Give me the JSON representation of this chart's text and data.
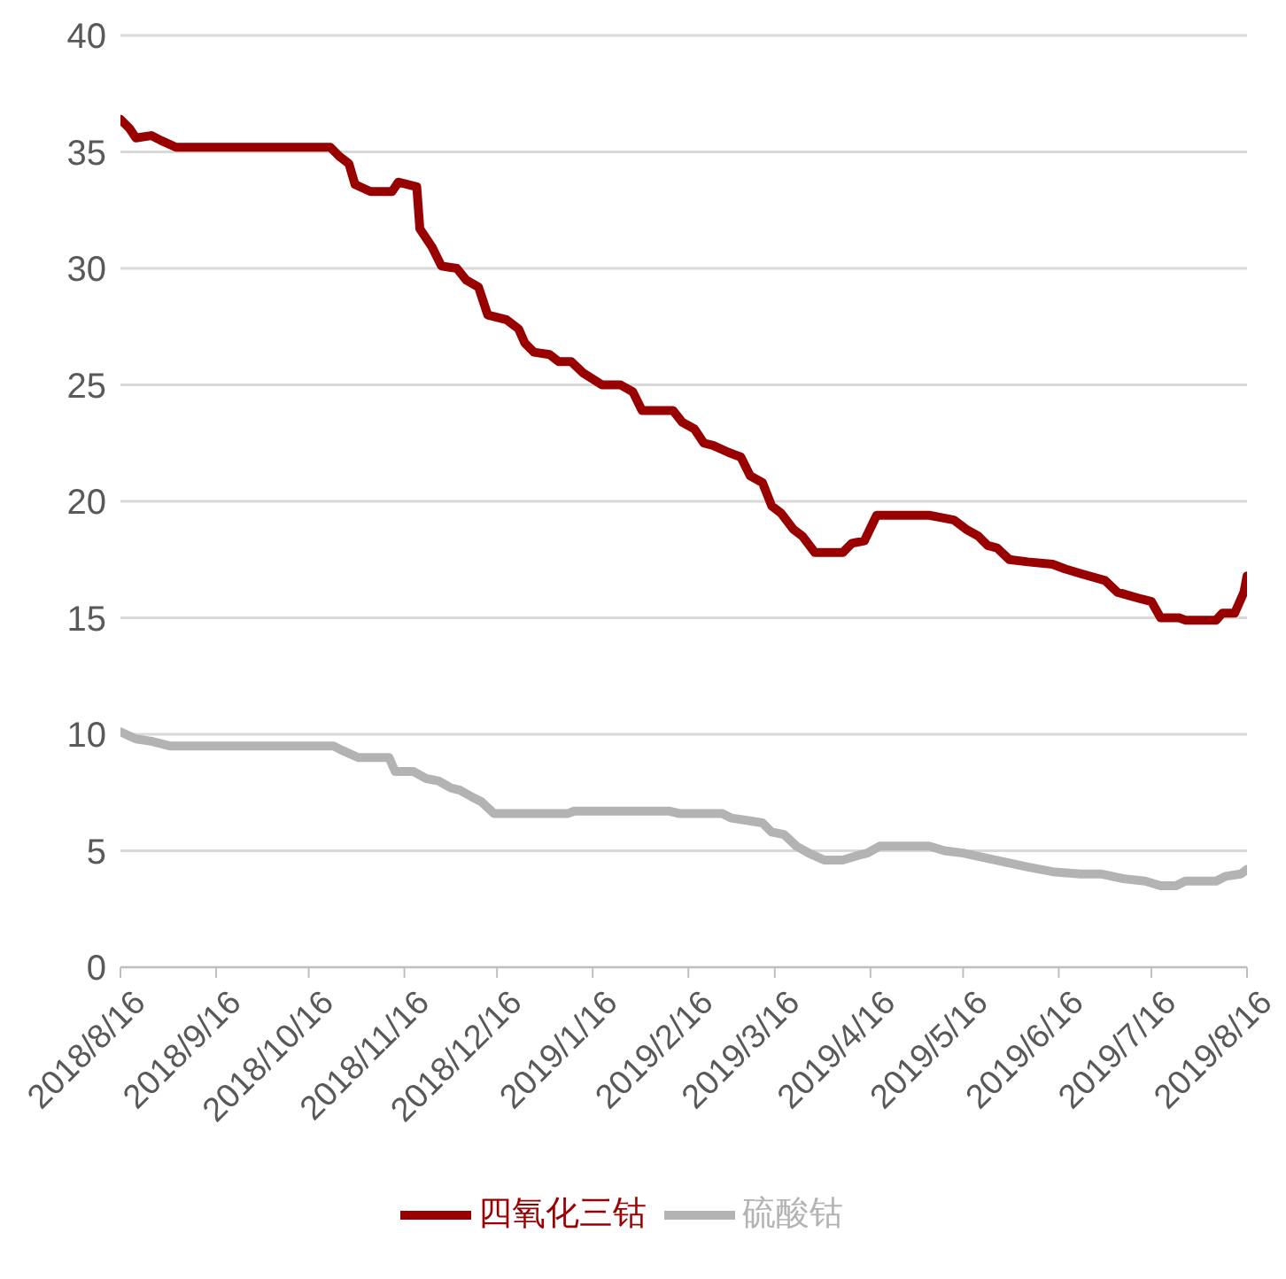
{
  "chart_data": {
    "type": "line",
    "legend": "bottom",
    "grid": "y",
    "marker": "none",
    "line_style": "solid",
    "xlim": [
      "2018-08-16",
      "2019-08-16"
    ],
    "xticks": [
      {
        "value": "2018-08-16",
        "label": "2018/8/16"
      },
      {
        "value": "2018-09-16",
        "label": "2018/9/16"
      },
      {
        "value": "2018-10-16",
        "label": "2018/10/16"
      },
      {
        "value": "2018-11-16",
        "label": "2018/11/16"
      },
      {
        "value": "2018-12-16",
        "label": "2018/12/16"
      },
      {
        "value": "2019-01-16",
        "label": "2019/1/16"
      },
      {
        "value": "2019-02-16",
        "label": "2019/2/16"
      },
      {
        "value": "2019-03-16",
        "label": "2019/3/16"
      },
      {
        "value": "2019-04-16",
        "label": "2019/4/16"
      },
      {
        "value": "2019-05-16",
        "label": "2019/5/16"
      },
      {
        "value": "2019-06-16",
        "label": "2019/6/16"
      },
      {
        "value": "2019-07-16",
        "label": "2019/7/16"
      },
      {
        "value": "2019-08-16",
        "label": "2019/8/16"
      }
    ],
    "ylim": [
      0,
      40
    ],
    "yticks": [
      0,
      5,
      10,
      15,
      20,
      25,
      30,
      35,
      40
    ],
    "series": [
      {
        "name": "四氧化三钴",
        "color": "#990000",
        "x": [
          "2018-08-16",
          "2018-08-19",
          "2018-08-21",
          "2018-08-26",
          "2018-08-29",
          "2018-09-03",
          "2018-10-23",
          "2018-10-26",
          "2018-10-29",
          "2018-10-31",
          "2018-11-05",
          "2018-11-12",
          "2018-11-14",
          "2018-11-20",
          "2018-11-21",
          "2018-11-25",
          "2018-11-28",
          "2018-12-03",
          "2018-12-06",
          "2018-12-10",
          "2018-12-13",
          "2018-12-19",
          "2018-12-23",
          "2018-12-25",
          "2018-12-28",
          "2019-01-02",
          "2019-01-05",
          "2019-01-09",
          "2019-01-13",
          "2019-01-19",
          "2019-01-25",
          "2019-01-29",
          "2019-02-01",
          "2019-02-11",
          "2019-02-14",
          "2019-02-18",
          "2019-02-21",
          "2019-02-24",
          "2019-03-01",
          "2019-03-05",
          "2019-03-08",
          "2019-03-12",
          "2019-03-15",
          "2019-03-18",
          "2019-03-22",
          "2019-03-25",
          "2019-03-29",
          "2019-04-07",
          "2019-04-10",
          "2019-04-14",
          "2019-04-18",
          "2019-05-05",
          "2019-05-09",
          "2019-05-13",
          "2019-05-17",
          "2019-05-21",
          "2019-05-24",
          "2019-05-27",
          "2019-05-31",
          "2019-06-06",
          "2019-06-14",
          "2019-06-18",
          "2019-06-23",
          "2019-07-01",
          "2019-07-05",
          "2019-07-13",
          "2019-07-16",
          "2019-07-19",
          "2019-07-25",
          "2019-07-27",
          "2019-08-06",
          "2019-08-08",
          "2019-08-12",
          "2019-08-15",
          "2019-08-16"
        ],
        "values": [
          36.4,
          36.0,
          35.6,
          35.7,
          35.5,
          35.2,
          35.2,
          34.8,
          34.5,
          33.6,
          33.3,
          33.3,
          33.7,
          33.5,
          31.7,
          30.9,
          30.1,
          30.0,
          29.5,
          29.2,
          28.0,
          27.8,
          27.4,
          26.8,
          26.4,
          26.3,
          26.0,
          26.0,
          25.5,
          25.0,
          25.0,
          24.7,
          23.9,
          23.9,
          23.4,
          23.1,
          22.5,
          22.4,
          22.1,
          21.9,
          21.1,
          20.8,
          19.8,
          19.5,
          18.8,
          18.5,
          17.8,
          17.8,
          18.2,
          18.3,
          19.4,
          19.4,
          19.3,
          19.2,
          18.8,
          18.5,
          18.1,
          18.0,
          17.5,
          17.4,
          17.3,
          17.1,
          16.9,
          16.6,
          16.1,
          15.8,
          15.7,
          15.0,
          15.0,
          14.9,
          14.9,
          15.2,
          15.2,
          16.1,
          16.8
        ]
      },
      {
        "name": "硫酸钴",
        "color": "#b3b3b3",
        "x": [
          "2018-08-16",
          "2018-08-21",
          "2018-08-26",
          "2018-09-01",
          "2018-10-24",
          "2018-10-27",
          "2018-11-01",
          "2018-11-11",
          "2018-11-13",
          "2018-11-19",
          "2018-11-23",
          "2018-11-27",
          "2018-12-01",
          "2018-12-04",
          "2018-12-08",
          "2018-12-11",
          "2018-12-15",
          "2019-01-08",
          "2019-01-10",
          "2019-02-10",
          "2019-02-13",
          "2019-02-27",
          "2019-03-02",
          "2019-03-07",
          "2019-03-12",
          "2019-03-15",
          "2019-03-19",
          "2019-03-23",
          "2019-03-27",
          "2019-04-01",
          "2019-04-07",
          "2019-04-12",
          "2019-04-15",
          "2019-04-19",
          "2019-05-05",
          "2019-05-10",
          "2019-05-16",
          "2019-05-23",
          "2019-05-30",
          "2019-06-06",
          "2019-06-14",
          "2019-06-23",
          "2019-06-30",
          "2019-07-07",
          "2019-07-14",
          "2019-07-19",
          "2019-07-24",
          "2019-07-27",
          "2019-08-06",
          "2019-08-09",
          "2019-08-14",
          "2019-08-16"
        ],
        "values": [
          10.1,
          9.8,
          9.7,
          9.5,
          9.5,
          9.3,
          9.0,
          9.0,
          8.4,
          8.4,
          8.1,
          8.0,
          7.7,
          7.6,
          7.3,
          7.1,
          6.6,
          6.6,
          6.7,
          6.7,
          6.6,
          6.6,
          6.4,
          6.3,
          6.2,
          5.8,
          5.7,
          5.2,
          4.9,
          4.6,
          4.6,
          4.8,
          4.9,
          5.2,
          5.2,
          5.0,
          4.9,
          4.7,
          4.5,
          4.3,
          4.1,
          4.0,
          4.0,
          3.8,
          3.7,
          3.5,
          3.5,
          3.7,
          3.7,
          3.9,
          4.0,
          4.2
        ]
      }
    ]
  }
}
